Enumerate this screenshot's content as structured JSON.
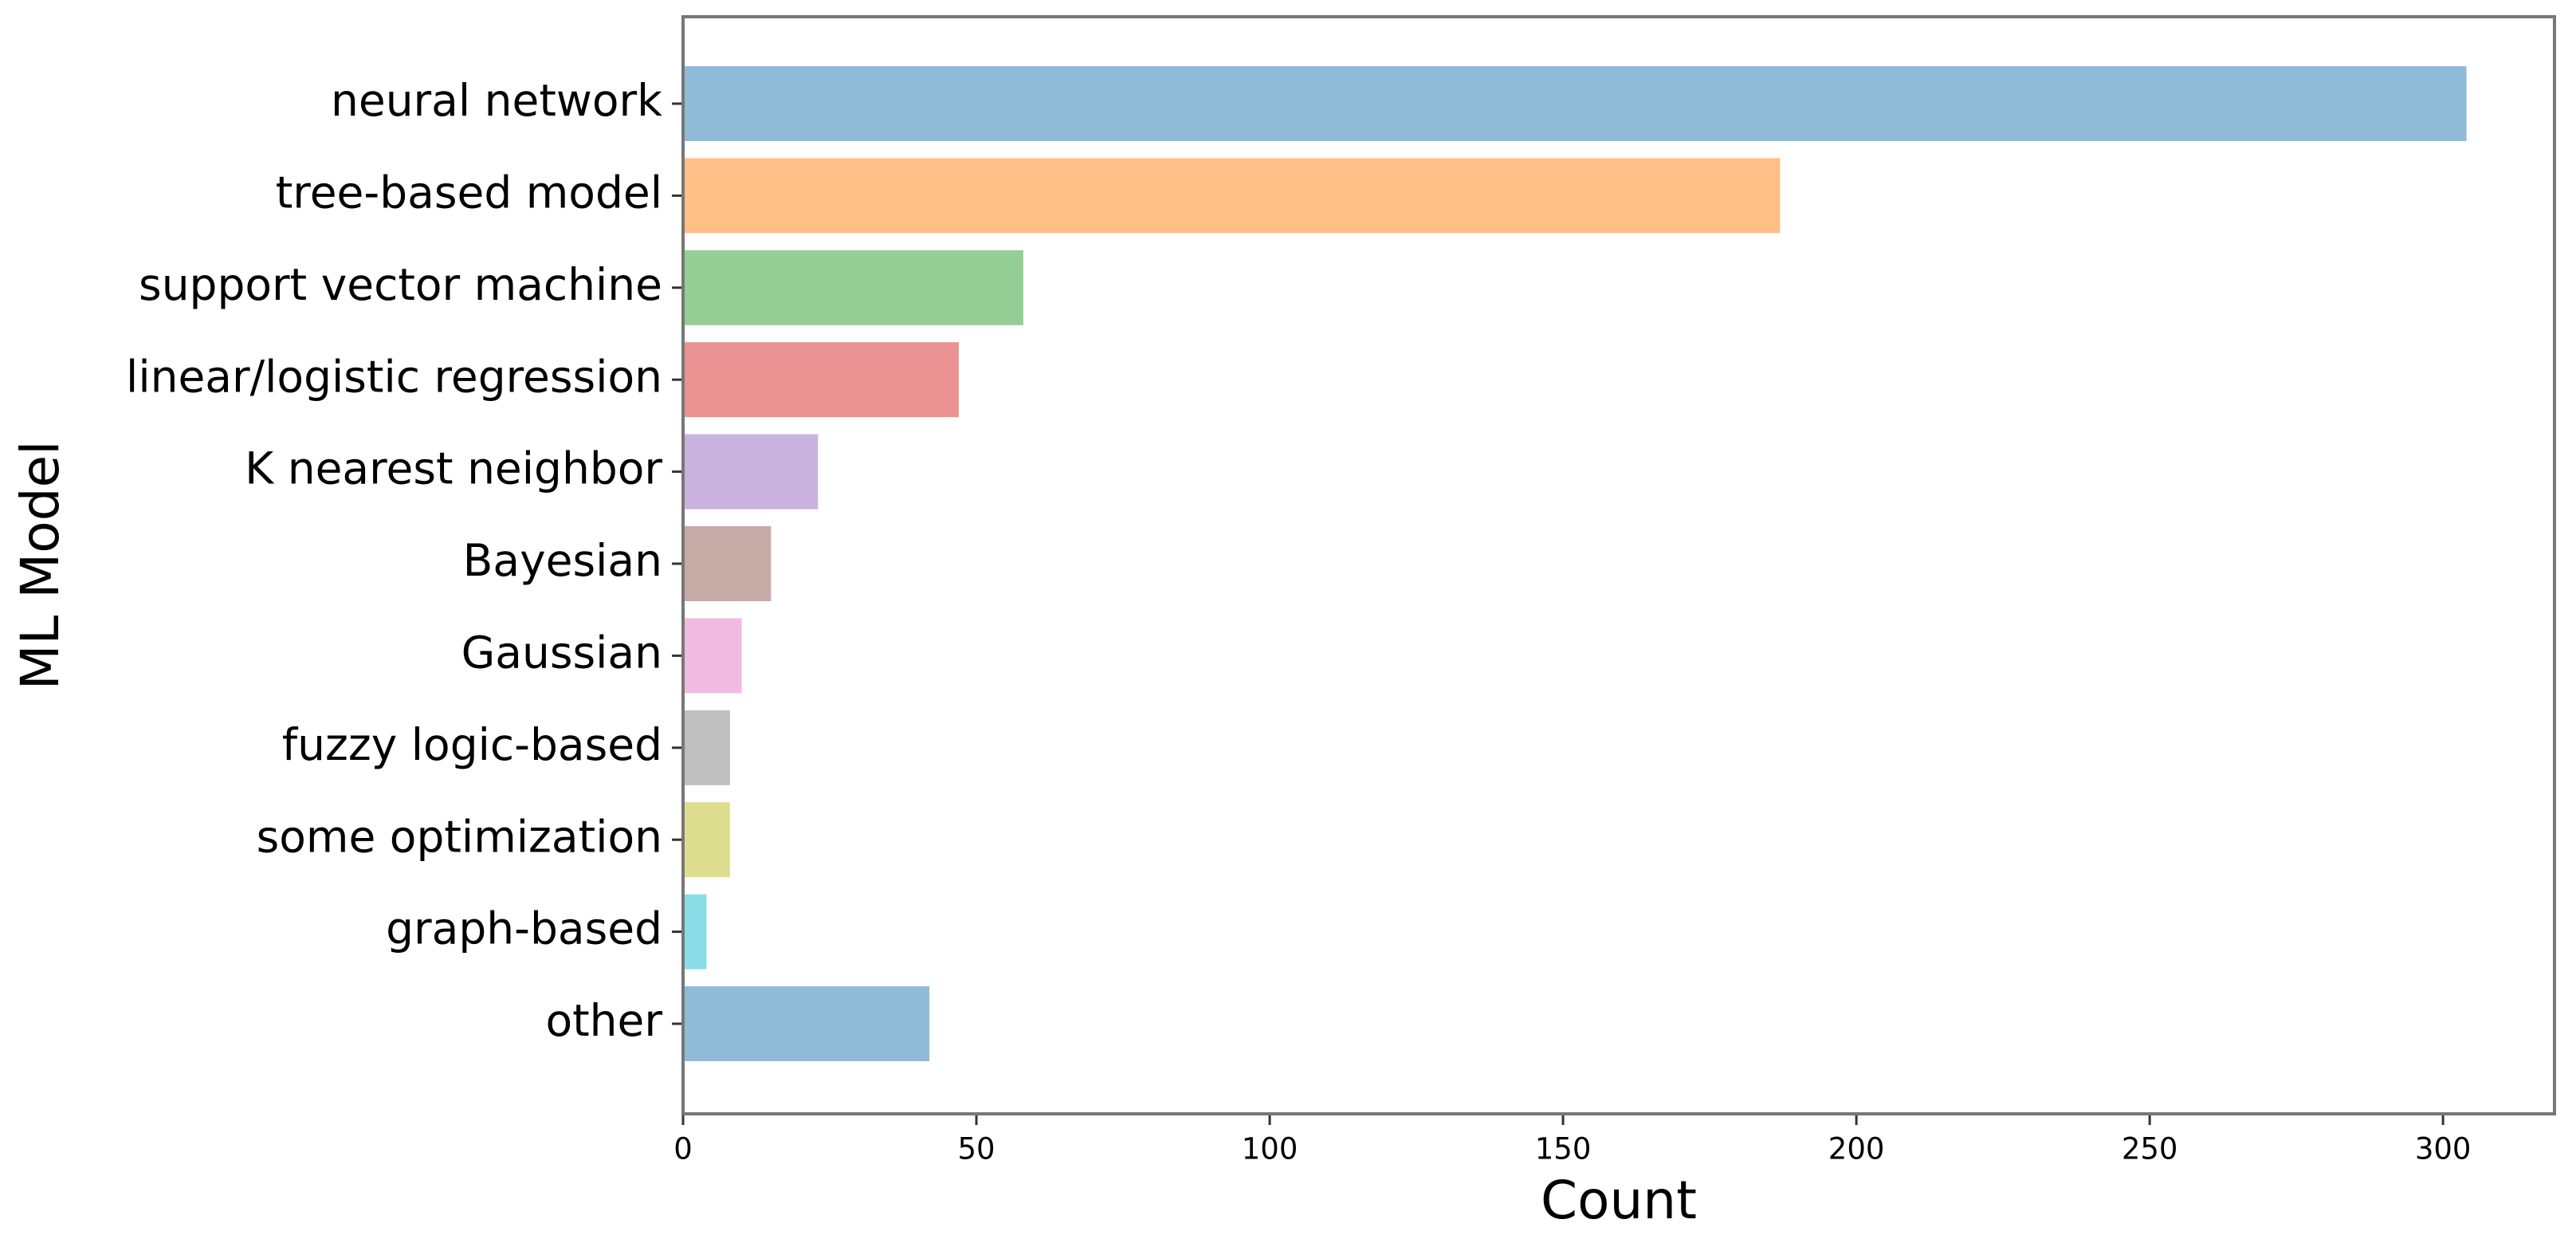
{
  "chart_data": {
    "type": "barh",
    "xlabel": "Count",
    "ylabel": "ML Model",
    "categories": [
      "neural network",
      "tree-based model",
      "support vector machine",
      "linear/logistic regression",
      "K nearest neighbor",
      "Bayesian",
      "Gaussian",
      "fuzzy logic-based",
      "some optimization",
      "graph-based",
      "other"
    ],
    "values": [
      304,
      187,
      58,
      47,
      23,
      15,
      10,
      8,
      8,
      4,
      42
    ],
    "colors": [
      "#8fbbd9",
      "#ffbf86",
      "#95cf95",
      "#ea9393",
      "#c9b3de",
      "#c5aaa5",
      "#f1bbe0",
      "#bfbfbf",
      "#ddde90",
      "#8bdee7",
      "#8fbbd9"
    ],
    "xlim": [
      0,
      319
    ],
    "xticks": [
      0,
      50,
      100,
      150,
      200,
      250,
      300
    ],
    "grid": false
  }
}
